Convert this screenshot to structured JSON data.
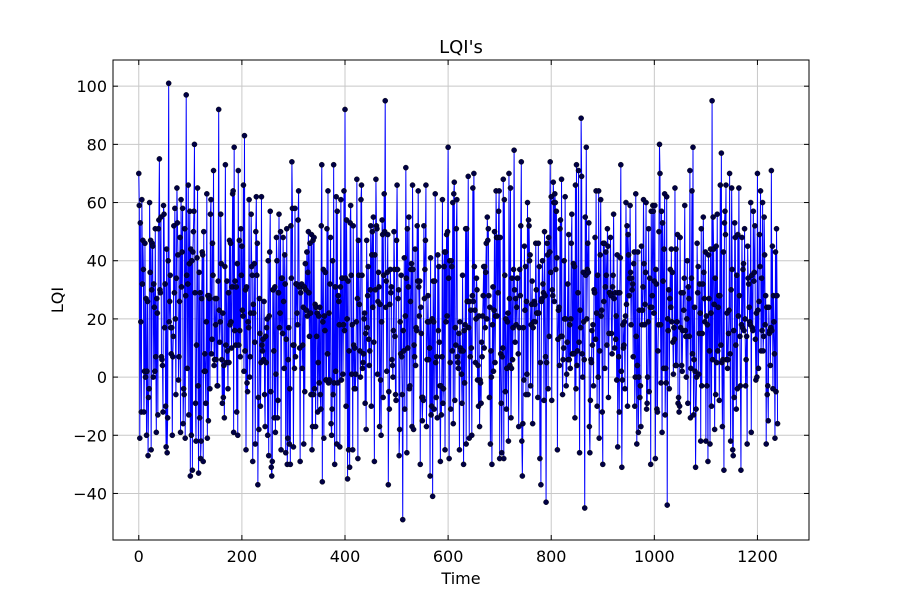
{
  "chart_data": {
    "type": "line",
    "title": "LQI's",
    "xlabel": "Time",
    "ylabel": "LQI",
    "xlim": [
      -50,
      1300
    ],
    "ylim": [
      -56,
      109
    ],
    "xticks": [
      0,
      200,
      400,
      600,
      800,
      1000,
      1200
    ],
    "yticks": [
      -40,
      -20,
      0,
      20,
      40,
      60,
      80,
      100
    ],
    "xtick_labels": [
      "0",
      "200",
      "400",
      "600",
      "800",
      "1000",
      "1200"
    ],
    "ytick_labels": [
      "−40",
      "−20",
      "0",
      "20",
      "40",
      "60",
      "80",
      "100"
    ],
    "grid": true,
    "line_color": "#0000ff",
    "marker_color": "#000044",
    "n_points": 1240,
    "x_step": 1,
    "anchor_points": [
      [
        0,
        70
      ],
      [
        2,
        -21
      ],
      [
        8,
        47
      ],
      [
        10,
        -12
      ],
      [
        15,
        -20
      ],
      [
        18,
        -27
      ],
      [
        21,
        60
      ],
      [
        24,
        -25
      ],
      [
        40,
        75
      ],
      [
        55,
        -26
      ],
      [
        58,
        101
      ],
      [
        65,
        -20
      ],
      [
        70,
        58
      ],
      [
        92,
        97
      ],
      [
        100,
        -34
      ],
      [
        108,
        80
      ],
      [
        120,
        -28
      ],
      [
        140,
        61
      ],
      [
        155,
        92
      ],
      [
        168,
        73
      ],
      [
        185,
        79
      ],
      [
        205,
        83
      ],
      [
        208,
        -25
      ],
      [
        228,
        62
      ],
      [
        238,
        62
      ],
      [
        250,
        -20
      ],
      [
        272,
        56
      ],
      [
        300,
        -24
      ],
      [
        335,
        49
      ],
      [
        356,
        -36
      ],
      [
        400,
        92
      ],
      [
        405,
        -35
      ],
      [
        432,
        66
      ],
      [
        460,
        68
      ],
      [
        470,
        -20
      ],
      [
        478,
        95
      ],
      [
        500,
        47
      ],
      [
        505,
        -27
      ],
      [
        512,
        -49
      ],
      [
        518,
        72
      ],
      [
        540,
        52
      ],
      [
        565,
        -34
      ],
      [
        570,
        -41
      ],
      [
        585,
        -29
      ],
      [
        600,
        79
      ],
      [
        630,
        -30
      ],
      [
        650,
        70
      ],
      [
        700,
        -28
      ],
      [
        728,
        78
      ],
      [
        780,
        -37
      ],
      [
        790,
        -43
      ],
      [
        820,
        68
      ],
      [
        840,
        56
      ],
      [
        858,
        89
      ],
      [
        865,
        -45
      ],
      [
        868,
        79
      ],
      [
        875,
        -26
      ],
      [
        935,
        73
      ],
      [
        945,
        60
      ],
      [
        1010,
        80
      ],
      [
        1025,
        -44
      ],
      [
        1040,
        65
      ],
      [
        1075,
        79
      ],
      [
        1080,
        -31
      ],
      [
        1100,
        -22
      ],
      [
        1112,
        95
      ],
      [
        1130,
        77
      ],
      [
        1135,
        -32
      ],
      [
        1150,
        65
      ],
      [
        1200,
        70
      ],
      [
        1220,
        -3
      ],
      [
        1235,
        43
      ],
      [
        1239,
        -16
      ]
    ]
  }
}
